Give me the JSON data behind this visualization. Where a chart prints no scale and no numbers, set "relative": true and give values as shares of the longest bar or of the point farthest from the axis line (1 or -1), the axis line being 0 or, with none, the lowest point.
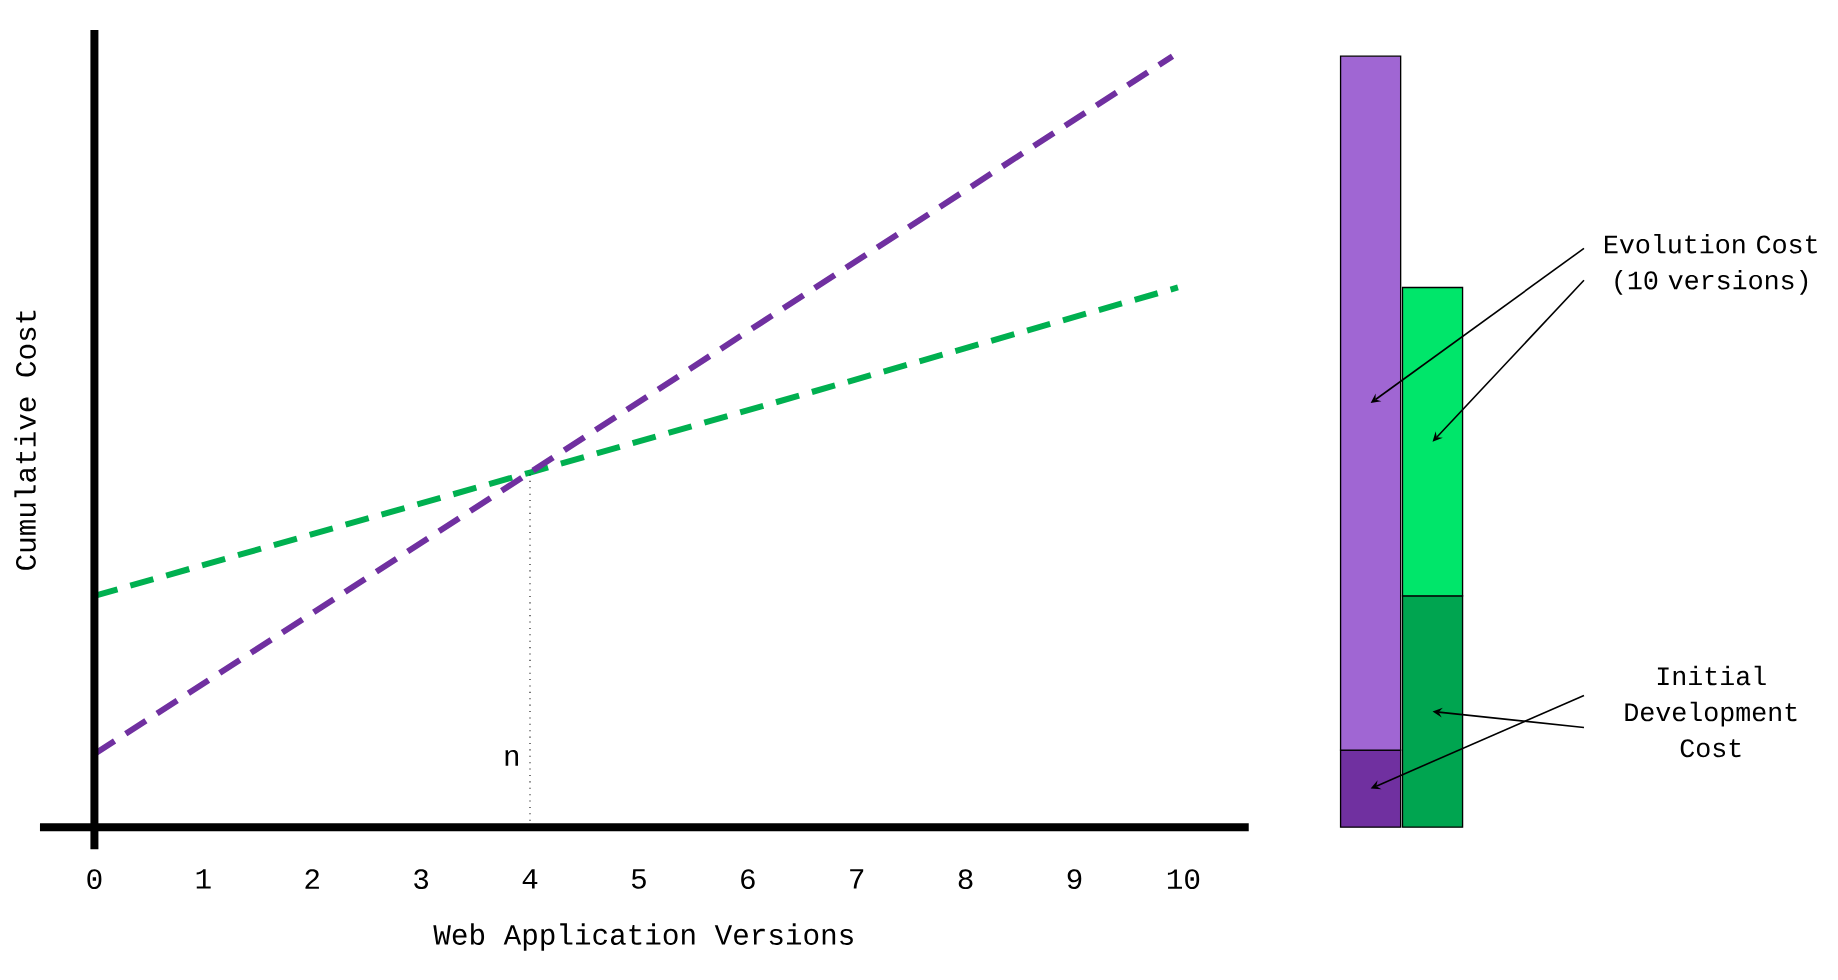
{
  "chart_data": [
    {
      "type": "line",
      "relative": true,
      "xlabel": "Web Application Versions",
      "ylabel": "Cumulative Cost",
      "xlim": [
        -0.5,
        10.6
      ],
      "xticks": [
        0,
        1,
        2,
        3,
        4,
        5,
        6,
        7,
        8,
        9,
        10
      ],
      "line_style": "dashed",
      "series": [
        {
          "color": "#00b050",
          "x": [
            0,
            4,
            9.95
          ],
          "values": [
            0.3,
            0.46,
            0.7
          ]
        },
        {
          "color": "#7030a0",
          "x": [
            0,
            4,
            9.9
          ],
          "values": [
            0.095,
            0.46,
            1
          ]
        }
      ],
      "ref_lines": [
        {
          "axis": "x",
          "value": 4,
          "label": "n",
          "line_style": "dotted",
          "color": "#000000"
        }
      ]
    },
    {
      "type": "bar",
      "stacked": true,
      "relative": true,
      "categories": [
        null,
        null
      ],
      "series": [
        {
          "colors": [
            "#7030a0",
            "#00a550"
          ],
          "values": [
            0.1,
            0.3
          ]
        },
        {
          "colors": [
            "#a066d3",
            "#00e66a"
          ],
          "values": [
            0.9,
            0.4
          ]
        }
      ],
      "annotations": [
        "Initial Development Cost",
        "Evolution Cost (10 versions)"
      ]
    }
  ]
}
